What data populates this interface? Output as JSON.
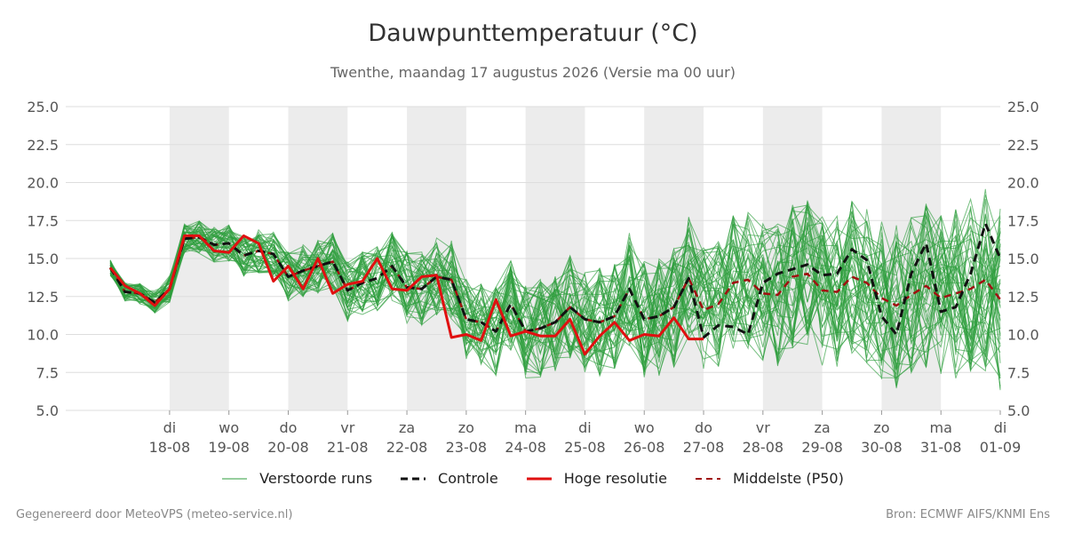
{
  "title": "Dauwpunttemperatuur (°C)",
  "subtitle": "Twenthe, maandag 17 augustus 2026 (Versie ma 00 uur)",
  "footer": {
    "left": "Gegenereerd door MeteoVPS (meteo-service.nl)",
    "right": "Bron: ECMWF AIFS/KNMI Ens"
  },
  "legend": [
    {
      "label": "Verstoorde runs",
      "key": "ensemble"
    },
    {
      "label": "Controle",
      "key": "control"
    },
    {
      "label": "Hoge resolutie",
      "key": "hires"
    },
    {
      "label": "Middelste (P50)",
      "key": "median"
    }
  ],
  "colors": {
    "ensemble": "#2e9e3e",
    "control": "#111111",
    "hires": "#e01010",
    "median": "#a01010",
    "weekend_band": "#ececec",
    "grid": "#dddddd"
  },
  "chart_data": {
    "type": "line",
    "x_unit": "days since 17-08-2026 00:00",
    "xlim": [
      -0.75,
      15
    ],
    "ylim": [
      5,
      25
    ],
    "yticks": [
      "5.0",
      "7.5",
      "10.0",
      "12.5",
      "15.0",
      "17.5",
      "20.0",
      "22.5",
      "25.0"
    ],
    "ytick_values": [
      5,
      7.5,
      10,
      12.5,
      15,
      17.5,
      20,
      22.5,
      25
    ],
    "xticks": [
      {
        "x": 1,
        "day": "di",
        "date": "18-08"
      },
      {
        "x": 2,
        "day": "wo",
        "date": "19-08"
      },
      {
        "x": 3,
        "day": "do",
        "date": "20-08"
      },
      {
        "x": 4,
        "day": "vr",
        "date": "21-08"
      },
      {
        "x": 5,
        "day": "za",
        "date": "22-08"
      },
      {
        "x": 6,
        "day": "zo",
        "date": "23-08"
      },
      {
        "x": 7,
        "day": "ma",
        "date": "24-08"
      },
      {
        "x": 8,
        "day": "di",
        "date": "25-08"
      },
      {
        "x": 9,
        "day": "wo",
        "date": "26-08"
      },
      {
        "x": 10,
        "day": "do",
        "date": "27-08"
      },
      {
        "x": 11,
        "day": "vr",
        "date": "28-08"
      },
      {
        "x": 12,
        "day": "za",
        "date": "29-08"
      },
      {
        "x": 13,
        "day": "zo",
        "date": "30-08"
      },
      {
        "x": 14,
        "day": "ma",
        "date": "31-08"
      },
      {
        "x": 15,
        "day": "di",
        "date": "01-09"
      }
    ],
    "shaded_bands": [
      [
        1,
        2
      ],
      [
        3,
        4
      ],
      [
        5,
        6
      ],
      [
        7,
        8
      ],
      [
        9,
        10
      ],
      [
        11,
        12
      ],
      [
        13,
        14
      ]
    ],
    "grid": true,
    "legend_position": "bottom",
    "series": [
      {
        "name": "Controle",
        "key": "control",
        "x": [
          0,
          0.25,
          0.5,
          0.75,
          1,
          1.25,
          1.5,
          1.75,
          2,
          2.25,
          2.5,
          2.75,
          3,
          3.25,
          3.5,
          3.75,
          4,
          4.25,
          4.5,
          4.75,
          5,
          5.25,
          5.5,
          5.75,
          6,
          6.25,
          6.5,
          6.75,
          7,
          7.25,
          7.5,
          7.75,
          8,
          8.25,
          8.5,
          8.75,
          9,
          9.25,
          9.5,
          9.75,
          10,
          10.25,
          10.5,
          10.75,
          11,
          11.25,
          11.5,
          11.75,
          12,
          12.25,
          12.5,
          12.75,
          13,
          13.25,
          13.5,
          13.75,
          14,
          14.25,
          14.5,
          14.75,
          15
        ],
        "values": [
          14.4,
          12.8,
          12.7,
          12.1,
          13.0,
          16.3,
          16.4,
          15.9,
          16.0,
          15.2,
          15.5,
          15.3,
          13.8,
          14.2,
          14.5,
          14.8,
          12.9,
          13.4,
          13.7,
          14.5,
          13.1,
          13.0,
          13.8,
          13.6,
          11.0,
          10.8,
          10.2,
          12.0,
          10.2,
          10.4,
          10.8,
          11.8,
          11.0,
          10.8,
          11.2,
          13.0,
          11.0,
          11.2,
          11.8,
          13.7,
          9.8,
          10.6,
          10.5,
          10.0,
          13.4,
          14.0,
          14.3,
          14.6,
          13.9,
          14.0,
          15.6,
          14.9,
          11.2,
          10.0,
          14.0,
          16.0,
          11.5,
          11.8,
          14.0,
          17.3,
          15.0
        ]
      },
      {
        "name": "Middelste (P50)",
        "key": "median",
        "x": [
          0,
          0.25,
          0.5,
          0.75,
          1,
          1.25,
          1.5,
          1.75,
          2,
          2.25,
          2.5,
          2.75,
          3,
          3.25,
          3.5,
          3.75,
          4,
          4.25,
          4.5,
          4.75,
          5,
          5.25,
          5.5,
          5.75,
          6,
          6.25,
          6.5,
          6.75,
          7,
          7.25,
          7.5,
          7.75,
          8,
          8.25,
          8.5,
          8.75,
          9,
          9.25,
          9.5,
          9.75,
          10,
          10.25,
          10.5,
          10.75,
          11,
          11.25,
          11.5,
          11.75,
          12,
          12.25,
          12.5,
          12.75,
          13,
          13.25,
          13.5,
          13.75,
          14,
          14.25,
          14.5,
          14.75,
          15
        ],
        "values": [
          14.4,
          12.8,
          12.7,
          12.1,
          13.0,
          16.3,
          16.4,
          15.9,
          16.0,
          15.2,
          15.5,
          15.3,
          13.8,
          14.2,
          14.5,
          14.8,
          12.9,
          13.4,
          13.7,
          14.5,
          13.1,
          13.0,
          13.8,
          13.6,
          11.0,
          10.8,
          10.2,
          12.0,
          10.2,
          10.4,
          10.8,
          11.8,
          11.0,
          10.8,
          11.2,
          13.0,
          11.0,
          11.2,
          11.8,
          13.7,
          11.6,
          12.0,
          13.4,
          13.6,
          12.7,
          12.6,
          13.8,
          14.0,
          12.9,
          12.8,
          13.8,
          13.4,
          12.4,
          11.9,
          12.6,
          13.2,
          12.4,
          12.7,
          13.0,
          13.6,
          12.3
        ]
      },
      {
        "name": "Hoge resolutie",
        "key": "hires",
        "x": [
          0,
          0.25,
          0.5,
          0.75,
          1,
          1.25,
          1.5,
          1.75,
          2,
          2.25,
          2.5,
          2.75,
          3,
          3.25,
          3.5,
          3.75,
          4,
          4.25,
          4.5,
          4.75,
          5,
          5.25,
          5.5,
          5.75,
          6,
          6.25,
          6.5,
          6.75,
          7,
          7.25,
          7.5,
          7.75,
          8,
          8.25,
          8.5,
          8.75,
          9,
          9.25,
          9.5,
          9.75,
          10
        ],
        "values": [
          14.4,
          13.2,
          12.7,
          11.9,
          13.0,
          16.5,
          16.5,
          15.5,
          15.4,
          16.5,
          16.0,
          13.5,
          14.5,
          13.0,
          15.0,
          12.7,
          13.3,
          13.5,
          15.0,
          13.0,
          12.9,
          13.8,
          13.9,
          9.8,
          10.0,
          9.6,
          12.3,
          9.9,
          10.2,
          9.9,
          9.9,
          11.0,
          8.7,
          9.9,
          10.8,
          9.6,
          10.0,
          9.9,
          11.1,
          9.7,
          9.7
        ]
      }
    ]
  }
}
